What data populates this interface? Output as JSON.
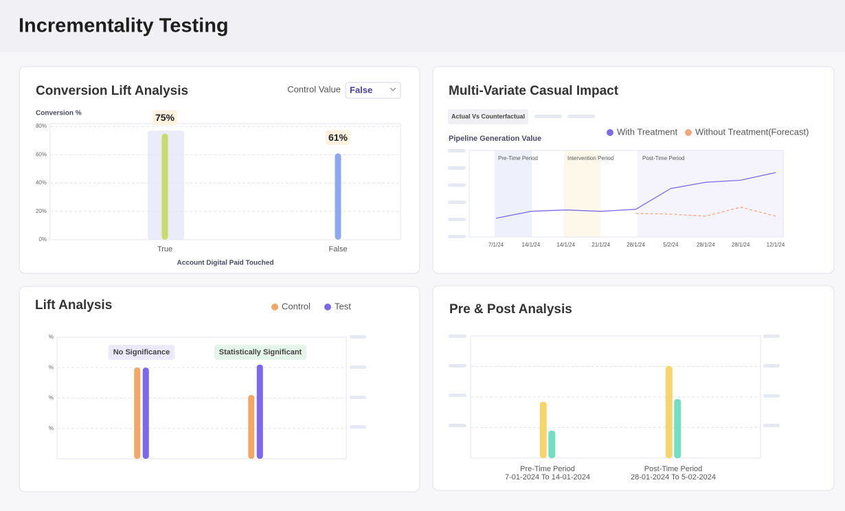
{
  "header": {
    "title": "Incrementality Testing"
  },
  "chart_data": [
    {
      "type": "bar",
      "title": "Conversion Lift Analysis",
      "control_label": "Control Value",
      "control_value": "False",
      "ylabel": "Conversion %",
      "xlabel": "Account Digital Paid Touched",
      "categories": [
        "True",
        "False"
      ],
      "values": [
        75,
        61
      ],
      "value_labels": [
        "75%",
        "61%"
      ],
      "colors": [
        "#c9dc6b",
        "#8fa7f0"
      ],
      "ylim": [
        0,
        80
      ],
      "yticks": [
        {
          "value": 0,
          "label": "0%"
        },
        {
          "value": 20,
          "label": "20%"
        },
        {
          "value": 40,
          "label": "40%"
        },
        {
          "value": 60,
          "label": "60%"
        },
        {
          "value": 80,
          "label": "80%"
        }
      ],
      "grid": true
    },
    {
      "type": "line",
      "title": "Multi-Variate Casual Impact",
      "tab": "Actual Vs Counterfactual",
      "subtitle": "Pipeline Generation Value",
      "categories": [
        "7/1/24",
        "14/1/24",
        "14/1/24",
        "21/1/24",
        "28/1/24",
        "5/2/24",
        "28/1/24",
        "28/1/24",
        "12/1/24"
      ],
      "series": [
        {
          "name": "With Treatment",
          "color": "#7b6be6",
          "style": "solid",
          "values": [
            1.08,
            1.48,
            1.56,
            1.48,
            1.6,
            2.8,
            3.16,
            3.28,
            3.72
          ]
        },
        {
          "name": "Without Treatment(Forecast)",
          "color": "#f2a77a",
          "style": "dashed",
          "values": [
            null,
            null,
            null,
            null,
            1.36,
            1.32,
            1.2,
            1.72,
            1.2
          ]
        }
      ],
      "ylim": [
        0,
        5
      ],
      "annotations": [
        "Pre-Time Period",
        "Intervention Period",
        "Post-Time Period"
      ],
      "legend": "top-right"
    },
    {
      "type": "bar",
      "title": "Lift Analysis",
      "categories": [
        null,
        null
      ],
      "series": [
        {
          "name": "Control",
          "color": "#f2a766",
          "values": [
            3,
            2.1
          ]
        },
        {
          "name": "Test",
          "color": "#7c67ee",
          "values": [
            3,
            3.1
          ]
        }
      ],
      "annotations": [
        "No Significance",
        "Statistically Significant"
      ],
      "ylim": [
        0,
        4
      ],
      "yticks": [
        {
          "value": 1,
          "label": "%"
        },
        {
          "value": 2,
          "label": "%"
        },
        {
          "value": 3,
          "label": "%"
        },
        {
          "value": 4,
          "label": "%"
        }
      ],
      "grid": true,
      "legend": "top-right"
    },
    {
      "type": "bar",
      "title": "Pre & Post Analysis",
      "categories": [
        "Pre-Time Period",
        "Post-Time Period"
      ],
      "category_ranges": [
        "7-01-2024 To 14-01-2024",
        "28-01-2024 To 5-02-2024"
      ],
      "series": [
        {
          "color": "#f5d56c",
          "values": [
            1.84,
            3.01
          ]
        },
        {
          "color": "#72dfc3",
          "values": [
            0.9,
            1.93
          ]
        }
      ],
      "ylim": [
        0,
        4
      ],
      "yticks": [
        1,
        2,
        3,
        4
      ],
      "grid": true
    }
  ]
}
